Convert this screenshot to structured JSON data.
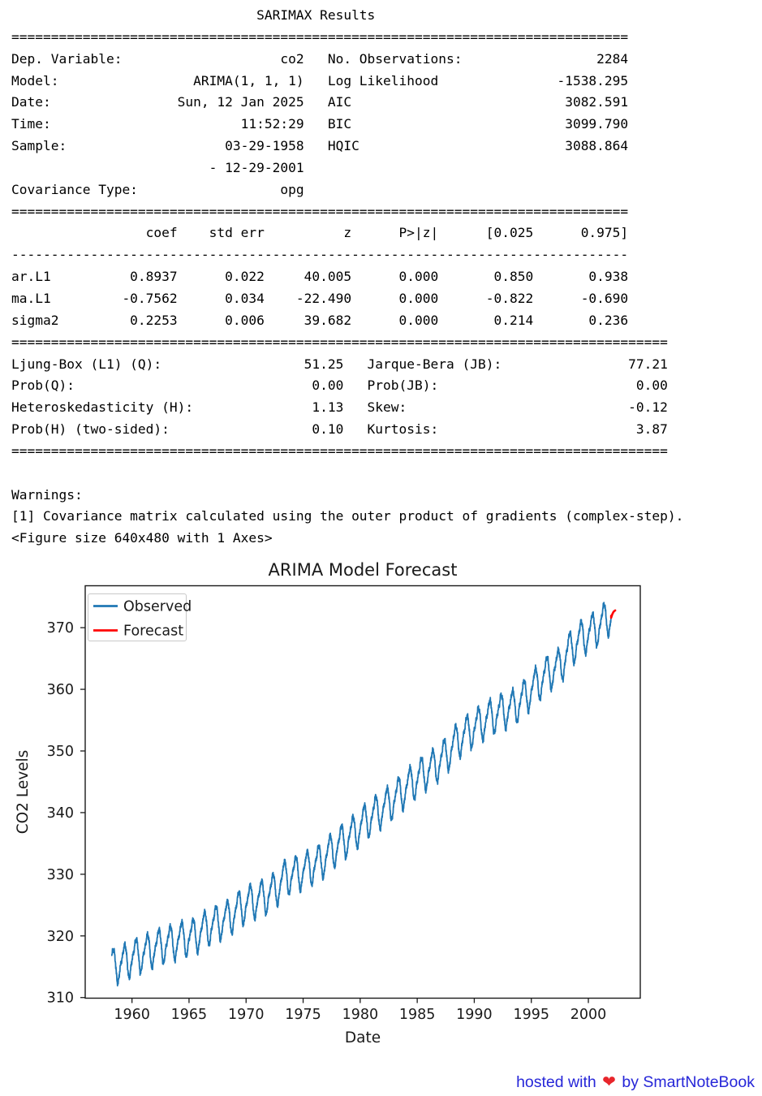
{
  "summary": {
    "lines": [
      "                               SARIMAX Results",
      "==============================================================================",
      "Dep. Variable:                    co2   No. Observations:                 2284",
      "Model:                 ARIMA(1, 1, 1)   Log Likelihood               -1538.295",
      "Date:                Sun, 12 Jan 2025   AIC                           3082.591",
      "Time:                        11:52:29   BIC                           3099.790",
      "Sample:                    03-29-1958   HQIC                          3088.864",
      "                         - 12-29-2001",
      "Covariance Type:                  opg",
      "==============================================================================",
      "                 coef    std err          z      P>|z|      [0.025      0.975]",
      "------------------------------------------------------------------------------",
      "ar.L1          0.8937      0.022     40.005      0.000       0.850       0.938",
      "ma.L1         -0.7562      0.034    -22.490      0.000      -0.822      -0.690",
      "sigma2         0.2253      0.006     39.682      0.000       0.214       0.236",
      "===================================================================================",
      "Ljung-Box (L1) (Q):                  51.25   Jarque-Bera (JB):                77.21",
      "Prob(Q):                              0.00   Prob(JB):                         0.00",
      "Heteroskedasticity (H):               1.13   Skew:                            -0.12",
      "Prob(H) (two-sided):                  0.10   Kurtosis:                         3.87",
      "===================================================================================",
      "",
      "Warnings:",
      "[1] Covariance matrix calculated using the outer product of gradients (complex-step).",
      "<Figure size 640x480 with 1 Axes>"
    ]
  },
  "chart_data": {
    "type": "line",
    "title": "ARIMA Model Forecast",
    "xlabel": "Date",
    "ylabel": "CO2 Levels",
    "xlim": [
      1955.9,
      2004.55
    ],
    "ylim": [
      309.9,
      376.8
    ],
    "x_ticks": [
      1960,
      1965,
      1970,
      1975,
      1980,
      1985,
      1990,
      1995,
      2000
    ],
    "y_ticks": [
      310,
      320,
      330,
      340,
      350,
      360,
      370
    ],
    "grid": false,
    "legend_position": "upper left",
    "text_color": "#1a1a1a",
    "series": [
      {
        "name": "Observed",
        "color": "#1f77b4",
        "start": 1958.23,
        "end": 2002.0,
        "points_per_year": 52,
        "years": [
          1958,
          1959,
          1960,
          1961,
          1962,
          1963,
          1964,
          1965,
          1966,
          1967,
          1968,
          1969,
          1970,
          1971,
          1972,
          1973,
          1974,
          1975,
          1976,
          1977,
          1978,
          1979,
          1980,
          1981,
          1982,
          1983,
          1984,
          1985,
          1986,
          1987,
          1988,
          1989,
          1990,
          1991,
          1992,
          1993,
          1994,
          1995,
          1996,
          1997,
          1998,
          1999,
          2000,
          2001
        ],
        "annual_means": [
          315.23,
          315.98,
          316.91,
          317.64,
          318.45,
          318.99,
          319.62,
          320.04,
          321.37,
          322.18,
          323.05,
          324.62,
          325.68,
          326.32,
          327.46,
          329.68,
          330.19,
          331.12,
          332.03,
          333.84,
          335.41,
          336.84,
          338.76,
          340.12,
          341.48,
          343.15,
          344.85,
          346.35,
          347.61,
          349.31,
          351.69,
          353.2,
          354.45,
          355.7,
          356.54,
          357.21,
          358.96,
          360.97,
          362.74,
          363.87,
          366.84,
          368.54,
          369.71,
          371.32
        ],
        "seasonal_cycle": [
          -0.04,
          0.64,
          1.37,
          2.53,
          2.9,
          2.27,
          0.69,
          -1.4,
          -3.07,
          -3.24,
          -2.05,
          -0.78
        ]
      },
      {
        "name": "Forecast",
        "color": "#ff0000",
        "points": [
          [
            2002.0,
            371.6
          ],
          [
            2002.1,
            372.2
          ],
          [
            2002.22,
            372.6
          ],
          [
            2002.35,
            372.8
          ]
        ]
      }
    ]
  },
  "footer": {
    "prefix": "hosted with",
    "heart": "❤",
    "suffix": "by SmartNoteBook",
    "link_color": "#2626d8",
    "heart_color": "#e8252b"
  }
}
